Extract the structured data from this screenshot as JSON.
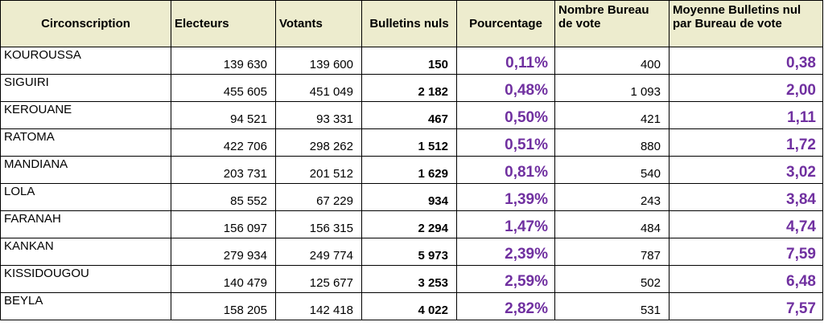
{
  "columns": [
    "Circonscription",
    "Electeurs",
    "Votants",
    "Bulletins nuls",
    "Pourcentage",
    "Nombre Bureau de vote",
    "Moyenne Bulletins nul par Bureau de vote"
  ],
  "rows": [
    {
      "circonscription": "KOUROUSSA",
      "electeurs": "139 630",
      "votants": "139 600",
      "bulletins_nuls": "150",
      "pourcentage": "0,11%",
      "nombre_bureau": "400",
      "moyenne": "0,38"
    },
    {
      "circonscription": "SIGUIRI",
      "electeurs": "455 605",
      "votants": "451 049",
      "bulletins_nuls": "2 182",
      "pourcentage": "0,48%",
      "nombre_bureau": "1 093",
      "moyenne": "2,00"
    },
    {
      "circonscription": "KEROUANE",
      "electeurs": "94 521",
      "votants": "93 331",
      "bulletins_nuls": "467",
      "pourcentage": "0,50%",
      "nombre_bureau": "421",
      "moyenne": "1,11"
    },
    {
      "circonscription": "RATOMA",
      "electeurs": "422 706",
      "votants": "298 262",
      "bulletins_nuls": "1 512",
      "pourcentage": "0,51%",
      "nombre_bureau": "880",
      "moyenne": "1,72"
    },
    {
      "circonscription": "MANDIANA",
      "electeurs": "203 731",
      "votants": "201 512",
      "bulletins_nuls": "1 629",
      "pourcentage": "0,81%",
      "nombre_bureau": "540",
      "moyenne": "3,02"
    },
    {
      "circonscription": "LOLA",
      "electeurs": "85 552",
      "votants": "67 229",
      "bulletins_nuls": "934",
      "pourcentage": "1,39%",
      "nombre_bureau": "243",
      "moyenne": "3,84"
    },
    {
      "circonscription": "FARANAH",
      "electeurs": "156 097",
      "votants": "156 315",
      "bulletins_nuls": "2 294",
      "pourcentage": "1,47%",
      "nombre_bureau": "484",
      "moyenne": "4,74"
    },
    {
      "circonscription": "KANKAN",
      "electeurs": "279 934",
      "votants": "249 774",
      "bulletins_nuls": "5 973",
      "pourcentage": "2,39%",
      "nombre_bureau": "787",
      "moyenne": "7,59"
    },
    {
      "circonscription": "KISSIDOUGOU",
      "electeurs": "140 479",
      "votants": "125 677",
      "bulletins_nuls": "3 253",
      "pourcentage": "2,59%",
      "nombre_bureau": "502",
      "moyenne": "6,48"
    },
    {
      "circonscription": "BEYLA",
      "electeurs": "158 205",
      "votants": "142 418",
      "bulletins_nuls": "4 022",
      "pourcentage": "2,82%",
      "nombre_bureau": "531",
      "moyenne": "7,57"
    }
  ],
  "colors": {
    "header_bg": "#edecce",
    "accent_purple": "#7030a0",
    "border": "#000000"
  }
}
